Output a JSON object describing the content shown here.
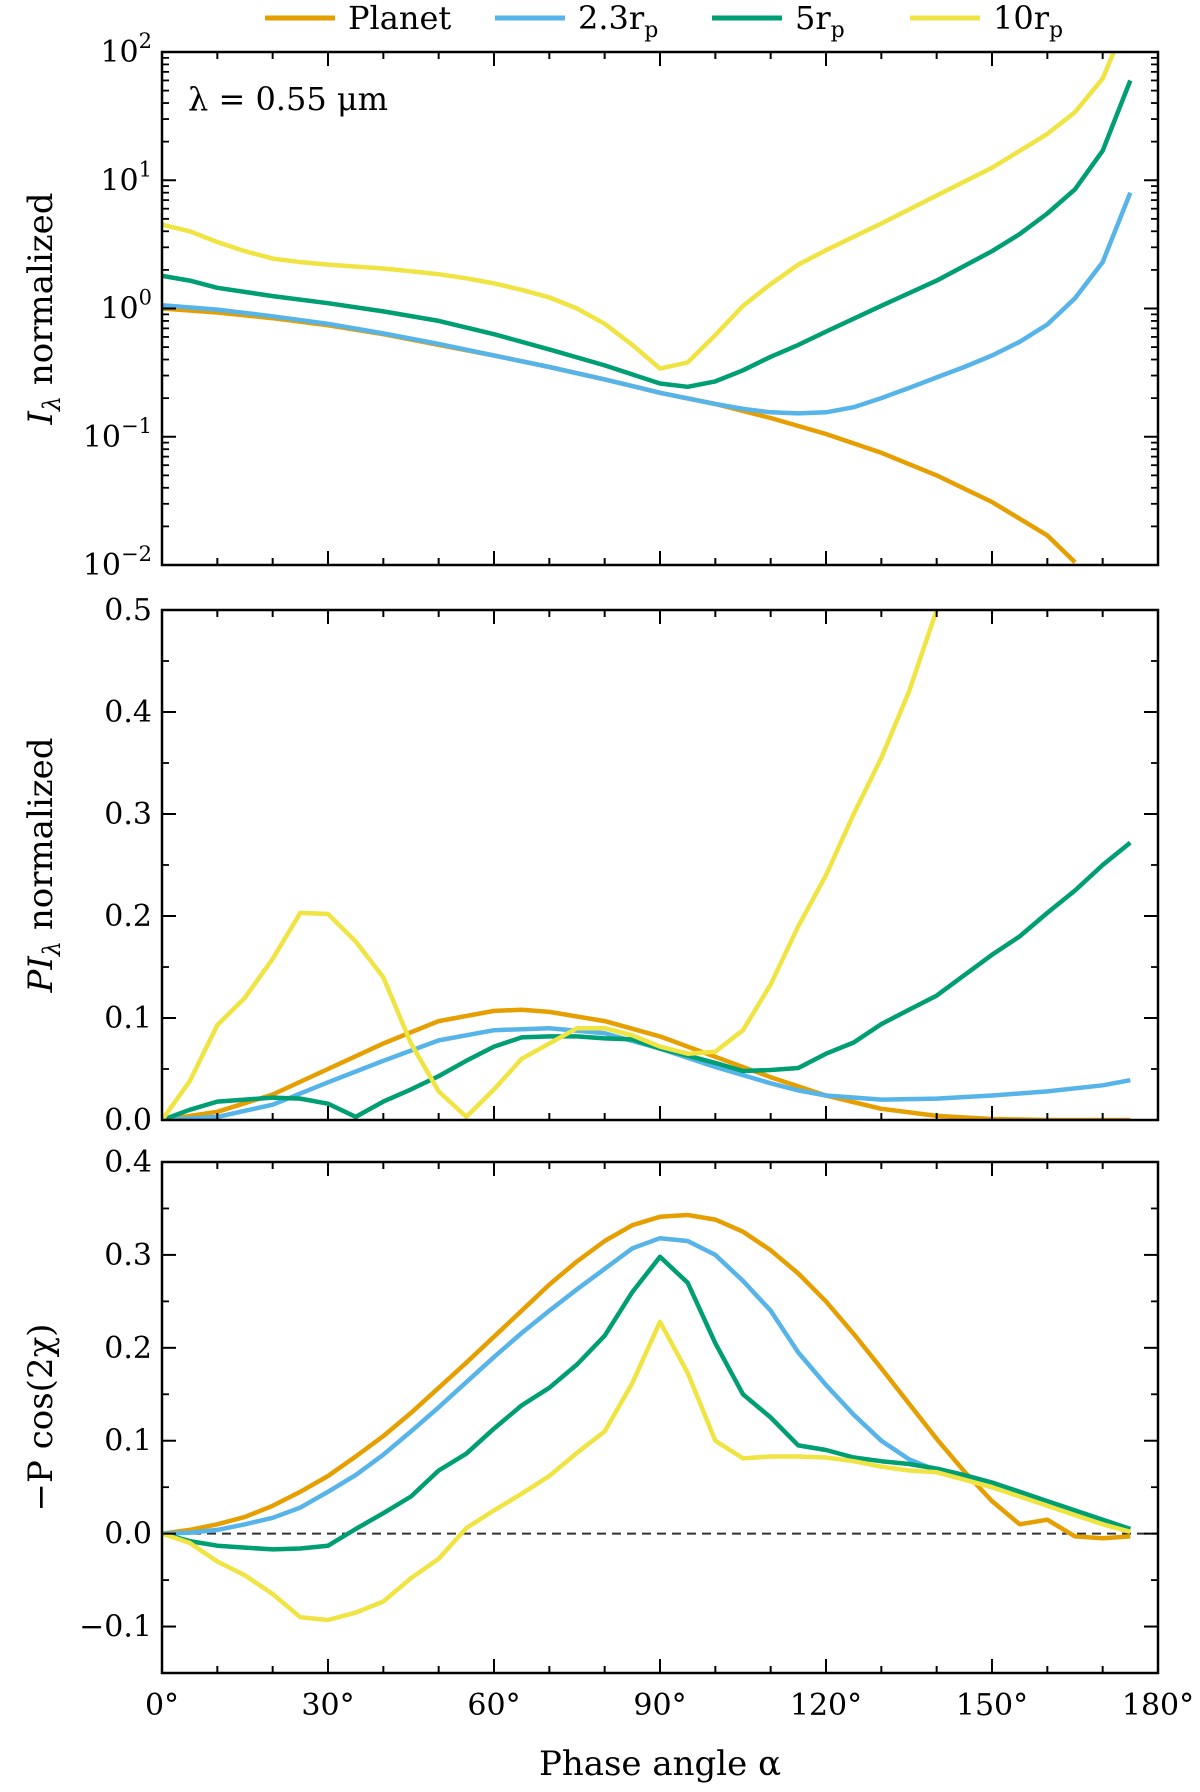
{
  "chart_data": {
    "type": "line",
    "legend": {
      "placement": "top",
      "entries": [
        {
          "name": "Planet",
          "color": "#E69F00"
        },
        {
          "name": "2.3r",
          "sub": "p",
          "color": "#56B4E9"
        },
        {
          "name": "5r",
          "sub": "p",
          "color": "#009E73"
        },
        {
          "name": "10r",
          "sub": "p",
          "color": "#F0E442"
        }
      ]
    },
    "xlabel": "Phase angle α",
    "xlim": [
      0,
      180
    ],
    "xticks": [
      0,
      30,
      60,
      90,
      120,
      150,
      180
    ],
    "xtick_labels": [
      "0°",
      "30°",
      "60°",
      "90°",
      "120°",
      "150°",
      "180°"
    ],
    "panels": [
      {
        "id": "intensity",
        "ylabel": "I_λ normalized",
        "ylabel_main": "I",
        "ylabel_sub": "λ",
        "ylabel_rest": " normalized",
        "yscale": "log",
        "ylim": [
          0.01,
          100
        ],
        "yticks": [
          0.01,
          0.1,
          1,
          10,
          100
        ],
        "ytick_base": [
          "10",
          "10",
          "10",
          "10",
          "10"
        ],
        "ytick_exp": [
          "−2",
          "−1",
          "0",
          "1",
          "2"
        ],
        "annotation": "λ = 0.55 μm",
        "series": [
          {
            "name": "Planet",
            "color": "#E69F00",
            "x": [
              0,
              10,
              20,
              30,
              40,
              50,
              60,
              70,
              80,
              90,
              100,
              110,
              120,
              130,
              140,
              150,
              160,
              165
            ],
            "y": [
              1.0,
              0.93,
              0.84,
              0.74,
              0.63,
              0.52,
              0.43,
              0.35,
              0.28,
              0.22,
              0.18,
              0.14,
              0.105,
              0.075,
              0.05,
              0.031,
              0.017,
              0.0105
            ]
          },
          {
            "name": "2.3r_p",
            "color": "#56B4E9",
            "x": [
              0,
              10,
              20,
              30,
              40,
              50,
              60,
              70,
              80,
              90,
              100,
              105,
              110,
              115,
              120,
              125,
              130,
              135,
              140,
              145,
              150,
              155,
              160,
              165,
              170,
              175
            ],
            "y": [
              1.06,
              0.98,
              0.87,
              0.76,
              0.64,
              0.53,
              0.43,
              0.35,
              0.28,
              0.22,
              0.18,
              0.165,
              0.155,
              0.152,
              0.155,
              0.17,
              0.2,
              0.24,
              0.29,
              0.35,
              0.43,
              0.55,
              0.75,
              1.2,
              2.3,
              8.0
            ]
          },
          {
            "name": "5r_p",
            "color": "#009E73",
            "x": [
              0,
              5,
              10,
              20,
              30,
              40,
              50,
              60,
              70,
              80,
              90,
              95,
              100,
              105,
              110,
              115,
              120,
              130,
              140,
              150,
              155,
              160,
              165,
              170,
              175
            ],
            "y": [
              1.8,
              1.65,
              1.45,
              1.25,
              1.1,
              0.95,
              0.8,
              0.63,
              0.48,
              0.36,
              0.26,
              0.245,
              0.27,
              0.33,
              0.42,
              0.52,
              0.66,
              1.05,
              1.65,
              2.8,
              3.8,
              5.5,
              8.5,
              17,
              60
            ]
          },
          {
            "name": "10r_p",
            "color": "#F0E442",
            "x": [
              0,
              5,
              10,
              15,
              20,
              25,
              30,
              35,
              40,
              45,
              50,
              55,
              60,
              65,
              70,
              75,
              80,
              85,
              90,
              95,
              100,
              105,
              110,
              115,
              120,
              130,
              140,
              150,
              160,
              165,
              170,
              172
            ],
            "y": [
              4.5,
              4.0,
              3.3,
              2.8,
              2.45,
              2.3,
              2.2,
              2.12,
              2.05,
              1.95,
              1.85,
              1.72,
              1.57,
              1.4,
              1.22,
              1.0,
              0.76,
              0.52,
              0.34,
              0.38,
              0.62,
              1.05,
              1.55,
              2.2,
              2.85,
              4.6,
              7.6,
              12.5,
              23,
              34,
              62,
              100
            ]
          }
        ]
      },
      {
        "id": "polarized",
        "ylabel": "PI_λ normalized",
        "ylabel_main": "PI",
        "ylabel_sub": "λ",
        "ylabel_rest": " normalized",
        "yscale": "linear",
        "ylim": [
          0,
          0.5
        ],
        "yticks": [
          0,
          0.1,
          0.2,
          0.3,
          0.4,
          0.5
        ],
        "ytick_labels": [
          "0.0",
          "0.1",
          "0.2",
          "0.3",
          "0.4",
          "0.5"
        ],
        "series": [
          {
            "name": "Planet",
            "color": "#E69F00",
            "x": [
              0,
              10,
              20,
              30,
              40,
              50,
              60,
              65,
              70,
              80,
              90,
              100,
              110,
              120,
              130,
              140,
              150,
              160,
              175
            ],
            "y": [
              0.0,
              0.008,
              0.025,
              0.05,
              0.075,
              0.097,
              0.107,
              0.108,
              0.106,
              0.097,
              0.082,
              0.062,
              0.042,
              0.024,
              0.011,
              0.004,
              0.001,
              0.0,
              0.0
            ]
          },
          {
            "name": "2.3r_p",
            "color": "#56B4E9",
            "x": [
              0,
              10,
              20,
              30,
              40,
              50,
              60,
              70,
              80,
              90,
              100,
              110,
              115,
              120,
              130,
              140,
              150,
              160,
              170,
              175
            ],
            "y": [
              0.0,
              0.003,
              0.015,
              0.037,
              0.058,
              0.078,
              0.088,
              0.09,
              0.085,
              0.07,
              0.052,
              0.036,
              0.029,
              0.024,
              0.02,
              0.021,
              0.024,
              0.028,
              0.034,
              0.039
            ]
          },
          {
            "name": "5r_p",
            "color": "#009E73",
            "x": [
              0,
              5,
              10,
              15,
              20,
              25,
              30,
              35,
              40,
              45,
              50,
              55,
              60,
              65,
              70,
              75,
              80,
              85,
              90,
              95,
              100,
              105,
              110,
              115,
              120,
              125,
              130,
              135,
              140,
              145,
              150,
              155,
              160,
              165,
              170,
              175
            ],
            "y": [
              0.0,
              0.01,
              0.018,
              0.02,
              0.022,
              0.021,
              0.016,
              0.003,
              0.018,
              0.03,
              0.043,
              0.058,
              0.072,
              0.081,
              0.082,
              0.082,
              0.08,
              0.079,
              0.07,
              0.063,
              0.056,
              0.048,
              0.049,
              0.051,
              0.065,
              0.076,
              0.094,
              0.108,
              0.122,
              0.142,
              0.162,
              0.18,
              0.203,
              0.225,
              0.25,
              0.272
            ]
          },
          {
            "name": "10r_p",
            "color": "#F0E442",
            "x": [
              0,
              5,
              10,
              15,
              20,
              25,
              30,
              35,
              40,
              45,
              50,
              55,
              60,
              65,
              70,
              75,
              80,
              85,
              90,
              95,
              100,
              105,
              110,
              115,
              120,
              125,
              130,
              135,
              140
            ],
            "y": [
              0.0,
              0.038,
              0.093,
              0.12,
              0.158,
              0.203,
              0.202,
              0.175,
              0.14,
              0.075,
              0.028,
              0.003,
              0.03,
              0.06,
              0.075,
              0.09,
              0.09,
              0.083,
              0.072,
              0.065,
              0.067,
              0.088,
              0.133,
              0.19,
              0.24,
              0.3,
              0.355,
              0.42,
              0.5
            ]
          }
        ]
      },
      {
        "id": "stokes",
        "ylabel": "−P cos(2χ)",
        "yscale": "linear",
        "ylim": [
          -0.15,
          0.4
        ],
        "yticks": [
          -0.1,
          0,
          0.1,
          0.2,
          0.3,
          0.4
        ],
        "ytick_labels": [
          "−0.1",
          "0.0",
          "0.1",
          "0.2",
          "0.3",
          "0.4"
        ],
        "reference_line": {
          "y": 0,
          "style": "dashed"
        },
        "series": [
          {
            "name": "Planet",
            "color": "#E69F00",
            "x": [
              0,
              5,
              10,
              15,
              20,
              25,
              30,
              35,
              40,
              45,
              50,
              55,
              60,
              65,
              70,
              75,
              80,
              85,
              90,
              95,
              100,
              105,
              110,
              115,
              120,
              125,
              130,
              135,
              140,
              145,
              150,
              155,
              160,
              165,
              170,
              175
            ],
            "y": [
              0.0,
              0.004,
              0.01,
              0.018,
              0.03,
              0.045,
              0.062,
              0.083,
              0.105,
              0.13,
              0.157,
              0.184,
              0.212,
              0.24,
              0.268,
              0.293,
              0.315,
              0.332,
              0.341,
              0.343,
              0.338,
              0.325,
              0.305,
              0.28,
              0.25,
              0.215,
              0.178,
              0.14,
              0.102,
              0.067,
              0.035,
              0.01,
              0.015,
              -0.003,
              -0.005,
              -0.003
            ]
          },
          {
            "name": "2.3r_p",
            "color": "#56B4E9",
            "x": [
              0,
              5,
              10,
              15,
              20,
              25,
              30,
              35,
              40,
              45,
              50,
              55,
              60,
              65,
              70,
              75,
              80,
              85,
              90,
              95,
              100,
              105,
              110,
              115,
              120,
              125,
              130,
              135,
              140,
              145,
              150,
              155,
              160,
              165,
              170,
              175
            ],
            "y": [
              0.0,
              0.001,
              0.004,
              0.01,
              0.017,
              0.028,
              0.045,
              0.063,
              0.085,
              0.11,
              0.136,
              0.163,
              0.19,
              0.216,
              0.24,
              0.263,
              0.285,
              0.307,
              0.318,
              0.315,
              0.3,
              0.272,
              0.24,
              0.195,
              0.16,
              0.128,
              0.1,
              0.08,
              0.068,
              0.06,
              0.05,
              0.041,
              0.032,
              0.024,
              0.015,
              0.005
            ]
          },
          {
            "name": "5r_p",
            "color": "#009E73",
            "x": [
              0,
              5,
              10,
              15,
              20,
              25,
              30,
              35,
              40,
              45,
              50,
              55,
              60,
              65,
              70,
              75,
              80,
              85,
              90,
              95,
              100,
              105,
              110,
              115,
              120,
              125,
              130,
              135,
              140,
              145,
              150,
              155,
              160,
              165,
              170,
              175
            ],
            "y": [
              0.0,
              -0.008,
              -0.013,
              -0.015,
              -0.017,
              -0.016,
              -0.013,
              0.005,
              0.022,
              0.04,
              0.068,
              0.086,
              0.113,
              0.138,
              0.157,
              0.182,
              0.213,
              0.26,
              0.298,
              0.27,
              0.205,
              0.15,
              0.125,
              0.095,
              0.09,
              0.082,
              0.078,
              0.075,
              0.07,
              0.063,
              0.055,
              0.045,
              0.035,
              0.025,
              0.015,
              0.005
            ]
          },
          {
            "name": "10r_p",
            "color": "#F0E442",
            "x": [
              0,
              5,
              10,
              15,
              20,
              25,
              30,
              35,
              40,
              45,
              50,
              55,
              60,
              65,
              70,
              75,
              80,
              85,
              90,
              95,
              100,
              105,
              110,
              115,
              120,
              125,
              130,
              135,
              140,
              145,
              150,
              155,
              160,
              165,
              170,
              175
            ],
            "y": [
              0.0,
              -0.01,
              -0.03,
              -0.045,
              -0.065,
              -0.09,
              -0.093,
              -0.085,
              -0.073,
              -0.048,
              -0.027,
              0.006,
              0.025,
              0.043,
              0.062,
              0.087,
              0.11,
              0.162,
              0.228,
              0.173,
              0.1,
              0.081,
              0.083,
              0.083,
              0.082,
              0.078,
              0.072,
              0.068,
              0.066,
              0.058,
              0.05,
              0.04,
              0.03,
              0.02,
              0.01,
              0.002
            ]
          }
        ]
      }
    ]
  }
}
